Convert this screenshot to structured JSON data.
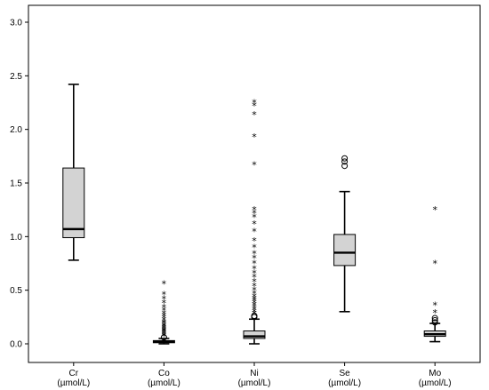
{
  "chart_data": {
    "type": "box",
    "title": "",
    "xlabel": "",
    "ylabel": "",
    "ylim": [
      -0.2,
      3.05
    ],
    "yticks": [
      0.0,
      0.5,
      1.0,
      1.5,
      2.0,
      2.5,
      3.0
    ],
    "ytick_labels": [
      "0.0",
      "0.5",
      "1.0",
      "1.5",
      "2.0",
      "2.5",
      "3.0"
    ],
    "grid": false,
    "legend": "none",
    "box_color": "#d3d3d3",
    "categories": [
      {
        "element": "Cr",
        "unit": "(µmol/L)"
      },
      {
        "element": "Co",
        "unit": "(µmol/L)"
      },
      {
        "element": "Ni",
        "unit": "(µmol/L)"
      },
      {
        "element": "Se",
        "unit": "(µmol/L)"
      },
      {
        "element": "Mo",
        "unit": "(µmol/L)"
      }
    ],
    "boxes": [
      {
        "whisker_low": 0.78,
        "q1": 0.99,
        "median": 1.07,
        "q3": 1.64,
        "whisker_high": 2.42,
        "outliers_circle": [],
        "outliers_star": []
      },
      {
        "whisker_low": 0.0,
        "q1": 0.01,
        "median": 0.02,
        "q3": 0.03,
        "whisker_high": 0.05,
        "outliers_circle": [
          0.06
        ],
        "outliers_star": [
          0.07,
          0.08,
          0.09,
          0.1,
          0.11,
          0.12,
          0.13,
          0.14,
          0.15,
          0.16,
          0.17,
          0.19,
          0.2,
          0.22,
          0.24,
          0.26,
          0.28,
          0.31,
          0.34,
          0.38,
          0.42,
          0.46,
          0.56
        ]
      },
      {
        "whisker_low": 0.0,
        "q1": 0.05,
        "median": 0.07,
        "q3": 0.12,
        "whisker_high": 0.23,
        "outliers_circle": [
          0.25,
          0.26
        ],
        "outliers_star": [
          0.28,
          0.3,
          0.32,
          0.34,
          0.36,
          0.38,
          0.4,
          0.42,
          0.44,
          0.47,
          0.5,
          0.54,
          0.58,
          0.62,
          0.66,
          0.7,
          0.75,
          0.8,
          0.84,
          0.9,
          0.96,
          1.05,
          1.12,
          1.18,
          1.22,
          1.25,
          1.67,
          1.93,
          2.14,
          2.22,
          2.25
        ]
      },
      {
        "whisker_low": 0.3,
        "q1": 0.73,
        "median": 0.85,
        "q3": 1.02,
        "whisker_high": 1.42,
        "outliers_circle": [
          1.66,
          1.7,
          1.73
        ],
        "outliers_star": []
      },
      {
        "whisker_low": 0.02,
        "q1": 0.07,
        "median": 0.09,
        "q3": 0.12,
        "whisker_high": 0.19,
        "outliers_circle": [
          0.2,
          0.22,
          0.24
        ],
        "outliers_star": [
          0.29,
          0.36,
          0.75,
          1.25
        ]
      }
    ]
  }
}
